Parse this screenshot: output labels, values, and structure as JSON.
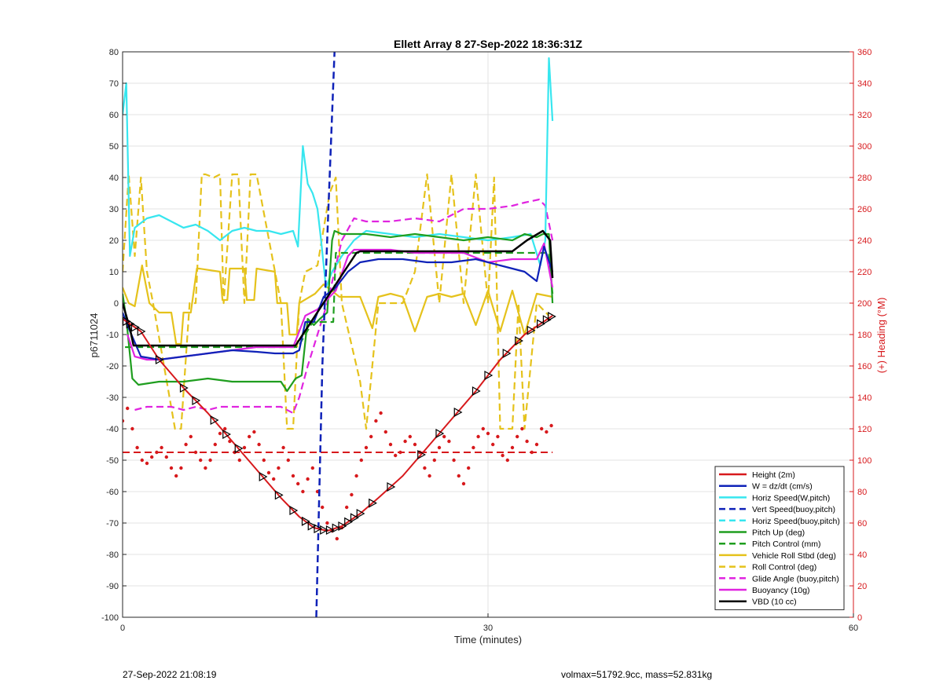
{
  "chart_data": {
    "type": "line",
    "title": "Ellett Array 8 27-Sep-2022 18:36:31Z",
    "xlabel": "Time (minutes)",
    "ylabel": "p6711024",
    "y2label": "(+) Heading (°M)",
    "xlim": [
      0,
      60
    ],
    "ylim": [
      -100,
      80
    ],
    "y2lim": [
      0,
      360
    ],
    "xticks": [
      "0",
      "30",
      "60"
    ],
    "yticks": [
      "80",
      "70",
      "60",
      "50",
      "40",
      "30",
      "20",
      "10",
      "0",
      "-10",
      "-20",
      "-30",
      "-40",
      "-50",
      "-60",
      "-70",
      "-80",
      "-90",
      "-100"
    ],
    "y2ticks": [
      "360",
      "340",
      "320",
      "300",
      "280",
      "260",
      "240",
      "220",
      "200",
      "180",
      "160",
      "140",
      "120",
      "100",
      "80",
      "60",
      "40",
      "20",
      "0"
    ],
    "grid": true,
    "legend_position": "bottom-right",
    "colors": {
      "height": "#d7191c",
      "w": "#0f22b8",
      "horiz_w": "#37e6ef",
      "vert_buoy": "#0f22b8",
      "horiz_buoy": "#37e6ef",
      "pitch_up": "#1f9e1f",
      "pitch_ctrl": "#1f9e1f",
      "roll": "#e5c21c",
      "roll_ctrl": "#e5c21c",
      "glide": "#e024e0",
      "buoyancy": "#e024e0",
      "vbd": "#000000",
      "heading": "#d7191c",
      "right_axis": "#d7191c"
    },
    "series": [
      {
        "name": "Height (2m)",
        "key": "height",
        "style": "solid",
        "x": [
          0,
          1.5,
          3,
          5,
          7,
          9,
          11,
          13,
          14.5,
          15.7,
          16.8,
          18,
          19.5,
          21,
          23,
          25,
          27,
          29,
          31,
          33,
          35.3
        ],
        "y": [
          -5,
          -9,
          -18,
          -27,
          -35,
          -44,
          -53,
          -62,
          -68,
          -71.5,
          -72.5,
          -71,
          -67,
          -62,
          -55,
          -46,
          -37,
          -28,
          -18,
          -10,
          -4
        ]
      },
      {
        "name": "W = dz/dt (cm/s)",
        "key": "w",
        "style": "solid",
        "x": [
          0,
          0.5,
          1.5,
          3,
          5,
          7,
          9,
          11,
          12.5,
          14,
          14.5,
          15,
          15.7,
          16.5,
          17.5,
          18.5,
          19.5,
          21,
          23,
          25,
          27,
          29,
          31,
          33,
          34,
          34.6,
          35.3
        ],
        "y": [
          -3,
          -8,
          -17,
          -18,
          -17,
          -16,
          -15,
          -15.5,
          -16,
          -16,
          -15,
          -6,
          -6,
          2,
          5,
          10,
          13,
          14,
          14,
          13,
          13,
          14,
          12,
          10,
          7,
          18,
          10
        ]
      },
      {
        "name": "Horiz Speed(W,pitch)",
        "key": "horiz_w",
        "style": "solid",
        "x": [
          0,
          0.3,
          0.6,
          1,
          2,
          3,
          4,
          5,
          6,
          7,
          8,
          9,
          10,
          11,
          12,
          13,
          14,
          14.4,
          14.8,
          15.2,
          15.6,
          16,
          16.3,
          16.7,
          17.2,
          18,
          19,
          20,
          22,
          24,
          26,
          28,
          30,
          32,
          33.5,
          34.3,
          34.7,
          35,
          35.3
        ],
        "y": [
          60,
          70,
          15,
          24,
          27,
          28,
          26,
          24,
          25,
          23,
          20,
          23,
          24,
          23,
          23,
          22,
          23,
          18,
          50,
          38,
          35,
          30,
          20,
          5,
          10,
          15,
          20,
          23,
          22,
          21,
          22,
          21,
          20,
          21,
          22,
          12,
          20,
          78,
          58
        ]
      },
      {
        "name": "Vert Speed(buoy,pitch)",
        "key": "vert_buoy",
        "style": "dashed",
        "x": [
          15.9,
          16.4,
          16.9,
          17.4
        ],
        "y": [
          -100,
          -20,
          30,
          80
        ]
      },
      {
        "name": "Horiz Speed(buoy,pitch)",
        "key": "horiz_buoy",
        "style": "dashed",
        "x": [],
        "y": []
      },
      {
        "name": "Pitch Up (deg)",
        "key": "pitch_up",
        "style": "solid",
        "x": [
          0,
          0.3,
          0.8,
          1.3,
          3,
          5,
          7,
          9,
          11,
          13,
          13.5,
          14.2,
          14.7,
          15.2,
          15.7,
          16.2,
          16.8,
          17.2,
          17.4,
          18,
          20,
          22,
          24,
          26,
          28,
          30,
          32,
          33,
          34,
          34.5,
          35,
          35.3
        ],
        "y": [
          3,
          -5,
          -24,
          -26,
          -25,
          -25,
          -24,
          -25,
          -25,
          -25,
          -28,
          -24,
          -23,
          -5,
          -7,
          -5,
          -3,
          20,
          23,
          22,
          22,
          21,
          22,
          21,
          20,
          21,
          20,
          22,
          21,
          22,
          22,
          0
        ]
      },
      {
        "name": "Pitch Control (mm)",
        "key": "pitch_ctrl",
        "style": "dashed",
        "x": [
          0.2,
          14.2,
          14.4,
          15.6,
          17.3,
          17.5,
          35,
          35.3
        ],
        "y": [
          -14,
          -14,
          -14,
          -6,
          -6,
          16,
          16,
          3
        ]
      },
      {
        "name": "Vehicle Roll Stbd (deg)",
        "key": "roll",
        "style": "solid",
        "x": [
          0,
          0.5,
          1,
          1.6,
          2.2,
          3,
          4,
          4.4,
          4.8,
          5,
          5.6,
          6.1,
          6.3,
          8,
          8.2,
          8.6,
          8.8,
          10,
          10.2,
          10.8,
          11,
          12.5,
          12.7,
          13.5,
          13.7,
          14.3,
          14.5,
          15.8,
          16.5,
          17.8,
          19.5,
          20.5,
          21,
          22,
          23,
          24,
          25,
          26,
          27,
          28,
          29,
          30,
          31,
          32,
          33,
          34,
          35.3
        ],
        "y": [
          5,
          0,
          -1,
          12,
          0,
          -3,
          -3,
          -13,
          -13,
          -3,
          -3,
          11,
          11,
          10,
          1,
          1,
          11,
          11,
          1,
          1,
          11,
          10,
          0,
          0,
          -10,
          -10,
          0,
          3,
          6,
          2,
          2,
          -8,
          2,
          3,
          2,
          -9,
          2,
          3,
          2,
          3,
          -7,
          4,
          -9,
          4,
          -10,
          3,
          2
        ]
      },
      {
        "name": "Roll Control (deg)",
        "key": "roll_ctrl",
        "style": "dashed",
        "x": [
          0,
          0.5,
          1,
          1.5,
          2,
          2.5,
          4.3,
          4.8,
          5.5,
          6,
          6.5,
          6.8,
          7.5,
          8,
          8.3,
          9,
          9.5,
          10,
          10.5,
          11,
          13,
          13.5,
          14,
          14.5,
          15,
          16,
          17,
          17.5,
          18,
          19.5,
          20,
          21,
          21.5,
          22,
          23,
          24,
          25,
          26,
          27,
          28,
          29,
          30,
          30.5,
          31,
          32,
          32.5,
          33,
          34,
          35
        ],
        "y": [
          10,
          41,
          15,
          40,
          10,
          0,
          -40,
          -40,
          0,
          0,
          41,
          41,
          40,
          41,
          0,
          41,
          41,
          0,
          41,
          41,
          0,
          -40,
          -40,
          0,
          10,
          12,
          35,
          40,
          0,
          -25,
          -40,
          0,
          0,
          0,
          0,
          10,
          41,
          0,
          41,
          0,
          41,
          0,
          40,
          -40,
          -40,
          0,
          -40,
          0,
          -4
        ]
      },
      {
        "name": "Glide Angle (buoy,pitch)",
        "key": "glide",
        "style": "dashed",
        "x": [
          1,
          2,
          3,
          4,
          5,
          6,
          7,
          8,
          9,
          10,
          11,
          12,
          13,
          14,
          14.5,
          15.2,
          16,
          16.8,
          17.4,
          18,
          19,
          20,
          22,
          24,
          26,
          28,
          30,
          32,
          33,
          34.2,
          34.7,
          35.3
        ],
        "y": [
          -34,
          -33,
          -33,
          -33,
          -34,
          -33,
          -34,
          -33,
          -33,
          -33,
          -33,
          -33,
          -33,
          -35,
          -30,
          -20,
          -10,
          0,
          10,
          20,
          27,
          26,
          26,
          27,
          26,
          30,
          30,
          31,
          32,
          33,
          31,
          20
        ]
      },
      {
        "name": "Buoyancy (10g)",
        "key": "buoyancy",
        "style": "solid",
        "x": [
          0.4,
          1,
          2,
          3,
          5,
          7,
          9,
          11,
          13,
          14,
          15,
          16,
          17.5,
          18.5,
          19,
          20,
          22,
          24,
          26,
          28,
          30,
          32,
          33,
          34,
          34.6,
          35.3
        ],
        "y": [
          -10,
          -17,
          -18,
          -18,
          -17,
          -16,
          -15,
          -14,
          -14,
          -14,
          -4,
          -2,
          4,
          15,
          17,
          17,
          17,
          16,
          16,
          16,
          13,
          14,
          14,
          14,
          19,
          5
        ]
      },
      {
        "name": "VBD (10 cc)",
        "key": "vbd",
        "style": "solid",
        "x": [
          0,
          0.6,
          0.9,
          14,
          14.2,
          19.2,
          19.5,
          30,
          32,
          33.2,
          34.5,
          35.1,
          35.3
        ],
        "y": [
          0,
          -8,
          -13.5,
          -13.5,
          -13.5,
          16,
          16.5,
          16.5,
          16.5,
          20,
          23,
          20,
          8
        ]
      }
    ],
    "heading": {
      "name": "Heading (deg, right axis)",
      "reference_y2": 105,
      "x": [
        0,
        0.4,
        0.8,
        1.2,
        1.6,
        2,
        2.4,
        2.8,
        3.2,
        3.6,
        4,
        4.4,
        4.8,
        5.2,
        5.6,
        6,
        6.4,
        6.8,
        7.2,
        7.6,
        8,
        8.4,
        8.8,
        9.2,
        9.6,
        10,
        10.4,
        10.8,
        11.2,
        11.6,
        12,
        12.4,
        12.8,
        13.2,
        13.6,
        14,
        14.4,
        14.8,
        15.2,
        15.6,
        16,
        16.4,
        16.8,
        17.2,
        17.6,
        18,
        18.4,
        18.8,
        19.2,
        19.6,
        20,
        20.4,
        20.8,
        21.2,
        21.6,
        22,
        22.4,
        22.8,
        23.2,
        23.6,
        24,
        24.4,
        24.8,
        25.2,
        25.6,
        26,
        26.4,
        26.8,
        27.2,
        27.6,
        28,
        28.4,
        28.8,
        29.2,
        29.6,
        30,
        30.4,
        30.8,
        31.2,
        31.6,
        32,
        32.4,
        32.8,
        33.2,
        33.6,
        34,
        34.4,
        34.8,
        35.2
      ],
      "y": [
        125,
        133,
        120,
        108,
        100,
        98,
        102,
        105,
        108,
        102,
        95,
        90,
        95,
        110,
        115,
        105,
        100,
        95,
        100,
        110,
        117,
        120,
        112,
        105,
        100,
        108,
        115,
        118,
        110,
        100,
        92,
        88,
        95,
        108,
        100,
        90,
        85,
        80,
        88,
        95,
        80,
        70,
        60,
        55,
        50,
        57,
        70,
        78,
        90,
        100,
        108,
        115,
        125,
        130,
        118,
        110,
        103,
        105,
        112,
        115,
        110,
        105,
        95,
        90,
        100,
        108,
        115,
        112,
        100,
        90,
        85,
        95,
        108,
        115,
        120,
        117,
        110,
        115,
        103,
        100,
        108,
        115,
        120,
        112,
        105,
        110,
        120,
        118,
        122
      ]
    },
    "height_markers_x": [
      0.3,
      0.6,
      1,
      1.5,
      3,
      5,
      6,
      7.5,
      8.5,
      9.5,
      11.5,
      12.8,
      14,
      15,
      15.5,
      16,
      16.5,
      17,
      17.5,
      18,
      18.5,
      19,
      19.5,
      20.5,
      22,
      24.5,
      26,
      27.5,
      29,
      30,
      31.5,
      32.5,
      33.5,
      34.3,
      34.8,
      35.2
    ]
  },
  "footer": {
    "left": "27-Sep-2022 21:08:19",
    "right": "volmax=51792.9cc, mass=52.831kg"
  }
}
